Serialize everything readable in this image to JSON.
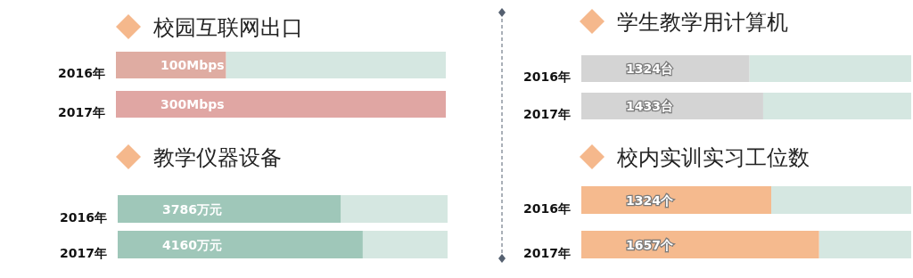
{
  "chart_data": [
    {
      "type": "bar",
      "orientation": "horizontal",
      "title": "校园互联网出口",
      "categories": [
        "2016年",
        "2017年"
      ],
      "values": [
        100,
        300
      ],
      "value_labels": [
        "100Mbps",
        "300Mbps"
      ],
      "colors": [
        "#dfaca2",
        "#e0a6a3"
      ],
      "xlim": [
        0,
        300
      ],
      "tick_labels": "y"
    },
    {
      "type": "bar",
      "orientation": "horizontal",
      "title": "教学仪器设备",
      "categories": [
        "2016年",
        "2017年"
      ],
      "values": [
        3786,
        4160
      ],
      "value_labels": [
        "3786万元",
        "4160万元"
      ],
      "colors": [
        "#9fc7b9",
        "#9fc7b9"
      ],
      "xlim": [
        0,
        5600
      ],
      "tick_labels": "y"
    },
    {
      "type": "bar",
      "orientation": "horizontal",
      "title": "学生教学用计算机",
      "categories": [
        "2016年",
        "2017年"
      ],
      "values": [
        1324,
        1433
      ],
      "value_labels": [
        "1324台",
        "1433台"
      ],
      "colors": [
        "#d4d4d4",
        "#d4d4d4"
      ],
      "xlim": [
        0,
        2600
      ],
      "tick_labels": "y"
    },
    {
      "type": "bar",
      "orientation": "horizontal",
      "title": "校内实训实习工位数",
      "categories": [
        "2016年",
        "2017年"
      ],
      "values": [
        1324,
        1657
      ],
      "value_labels": [
        "1324个",
        "1657个"
      ],
      "colors": [
        "#f5ba8e",
        "#f5ba8e"
      ],
      "xlim": [
        0,
        2300
      ],
      "tick_labels": "y"
    }
  ]
}
